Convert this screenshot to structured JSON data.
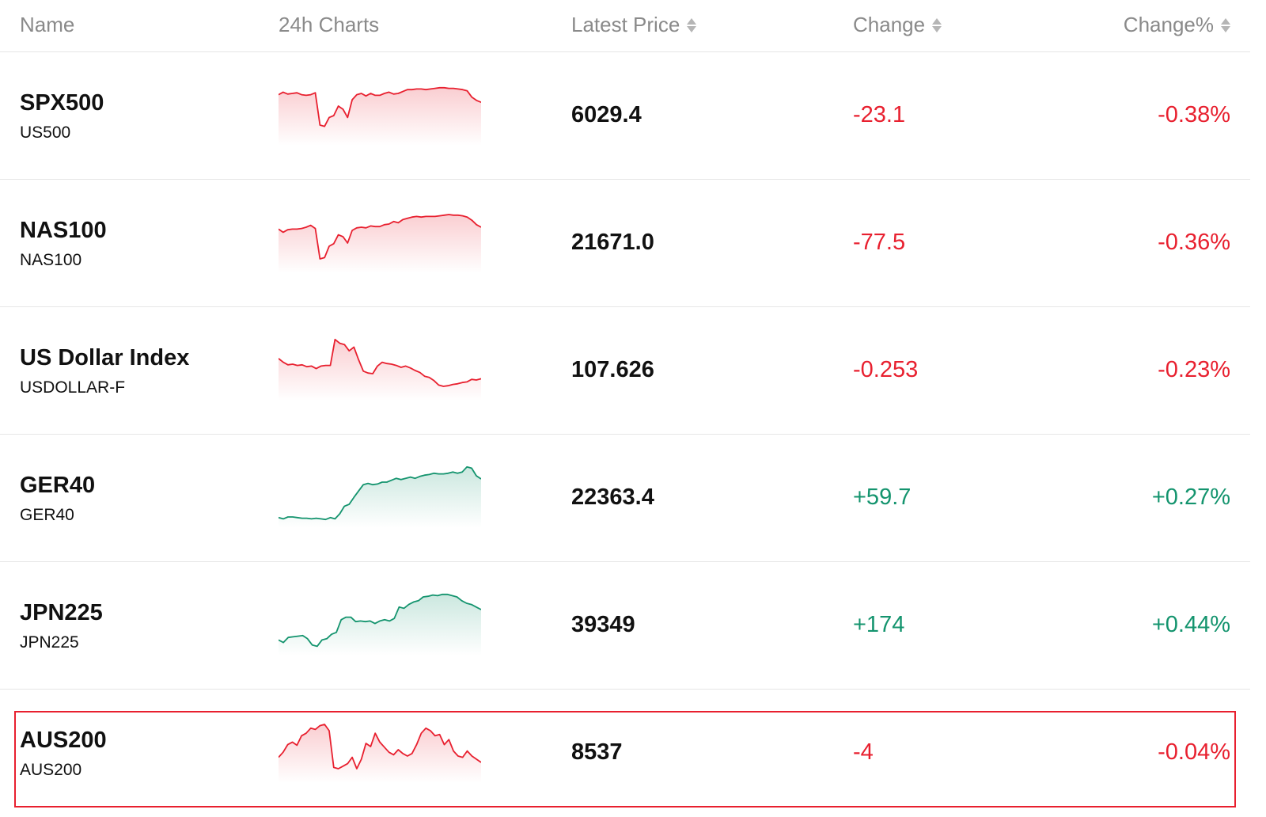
{
  "header": {
    "name": "Name",
    "chart": "24h Charts",
    "price": "Latest Price",
    "change": "Change",
    "change_pct": "Change%"
  },
  "colors": {
    "down": "#e8202f",
    "up": "#14946e"
  },
  "rows": [
    {
      "symbol": "SPX500",
      "code": "US500",
      "price": "6029.4",
      "change": "-23.1",
      "change_pct": "-0.38%",
      "direction": "down",
      "spark": [
        78,
        82,
        79,
        80,
        81,
        78,
        77,
        78,
        81,
        30,
        28,
        42,
        45,
        60,
        55,
        42,
        70,
        78,
        80,
        76,
        80,
        77,
        77,
        80,
        82,
        79,
        80,
        83,
        86,
        86,
        87,
        87,
        86,
        87,
        88,
        89,
        89,
        88,
        88,
        87,
        86,
        84,
        74,
        69,
        66
      ]
    },
    {
      "symbol": "NAS100",
      "code": "NAS100",
      "price": "21671.0",
      "change": "-77.5",
      "change_pct": "-0.36%",
      "direction": "down",
      "spark": [
        67,
        62,
        66,
        67,
        67,
        68,
        70,
        73,
        68,
        20,
        22,
        40,
        44,
        58,
        55,
        45,
        65,
        69,
        70,
        69,
        72,
        71,
        71,
        74,
        75,
        79,
        77,
        82,
        84,
        86,
        87,
        86,
        87,
        87,
        87,
        88,
        89,
        90,
        89,
        89,
        88,
        86,
        81,
        74,
        70
      ]
    },
    {
      "symbol": "US Dollar Index",
      "code": "USDOLLAR-F",
      "price": "107.626",
      "change": "-0.253",
      "change_pct": "-0.23%",
      "direction": "down",
      "spark": [
        64,
        58,
        54,
        55,
        53,
        54,
        51,
        52,
        48,
        52,
        53,
        53,
        94,
        88,
        86,
        76,
        82,
        62,
        44,
        41,
        40,
        52,
        58,
        56,
        55,
        53,
        50,
        52,
        49,
        45,
        42,
        36,
        34,
        29,
        22,
        20,
        21,
        23,
        24,
        26,
        27,
        31,
        30,
        32
      ]
    },
    {
      "symbol": "GER40",
      "code": "GER40",
      "price": "22363.4",
      "change": "+59.7",
      "change_pct": "+0.27%",
      "direction": "up",
      "spark": [
        14,
        12,
        15,
        15,
        14,
        13,
        13,
        12,
        13,
        12,
        11,
        14,
        12,
        20,
        32,
        35,
        46,
        56,
        66,
        68,
        66,
        67,
        70,
        70,
        73,
        76,
        74,
        76,
        78,
        76,
        79,
        81,
        82,
        84,
        83,
        83,
        84,
        86,
        84,
        86,
        94,
        92,
        80,
        75
      ]
    },
    {
      "symbol": "JPN225",
      "code": "JPN225",
      "price": "39349",
      "change": "+174",
      "change_pct": "+0.44%",
      "direction": "up",
      "spark": [
        22,
        18,
        26,
        27,
        28,
        29,
        24,
        14,
        12,
        22,
        24,
        31,
        34,
        54,
        58,
        58,
        51,
        52,
        51,
        52,
        48,
        52,
        54,
        52,
        56,
        74,
        72,
        78,
        82,
        84,
        90,
        91,
        93,
        92,
        94,
        94,
        92,
        90,
        84,
        80,
        78,
        74,
        70
      ]
    },
    {
      "symbol": "AUS200",
      "code": "AUS200",
      "price": "8537",
      "change": "-4",
      "change_pct": "-0.04%",
      "direction": "down",
      "spark": [
        38,
        46,
        58,
        62,
        57,
        72,
        76,
        84,
        82,
        88,
        90,
        80,
        22,
        20,
        24,
        28,
        38,
        20,
        35,
        60,
        55,
        76,
        62,
        54,
        46,
        42,
        50,
        44,
        40,
        44,
        58,
        76,
        84,
        80,
        72,
        74,
        58,
        66,
        48,
        40,
        38,
        48,
        40,
        35,
        30
      ]
    }
  ]
}
